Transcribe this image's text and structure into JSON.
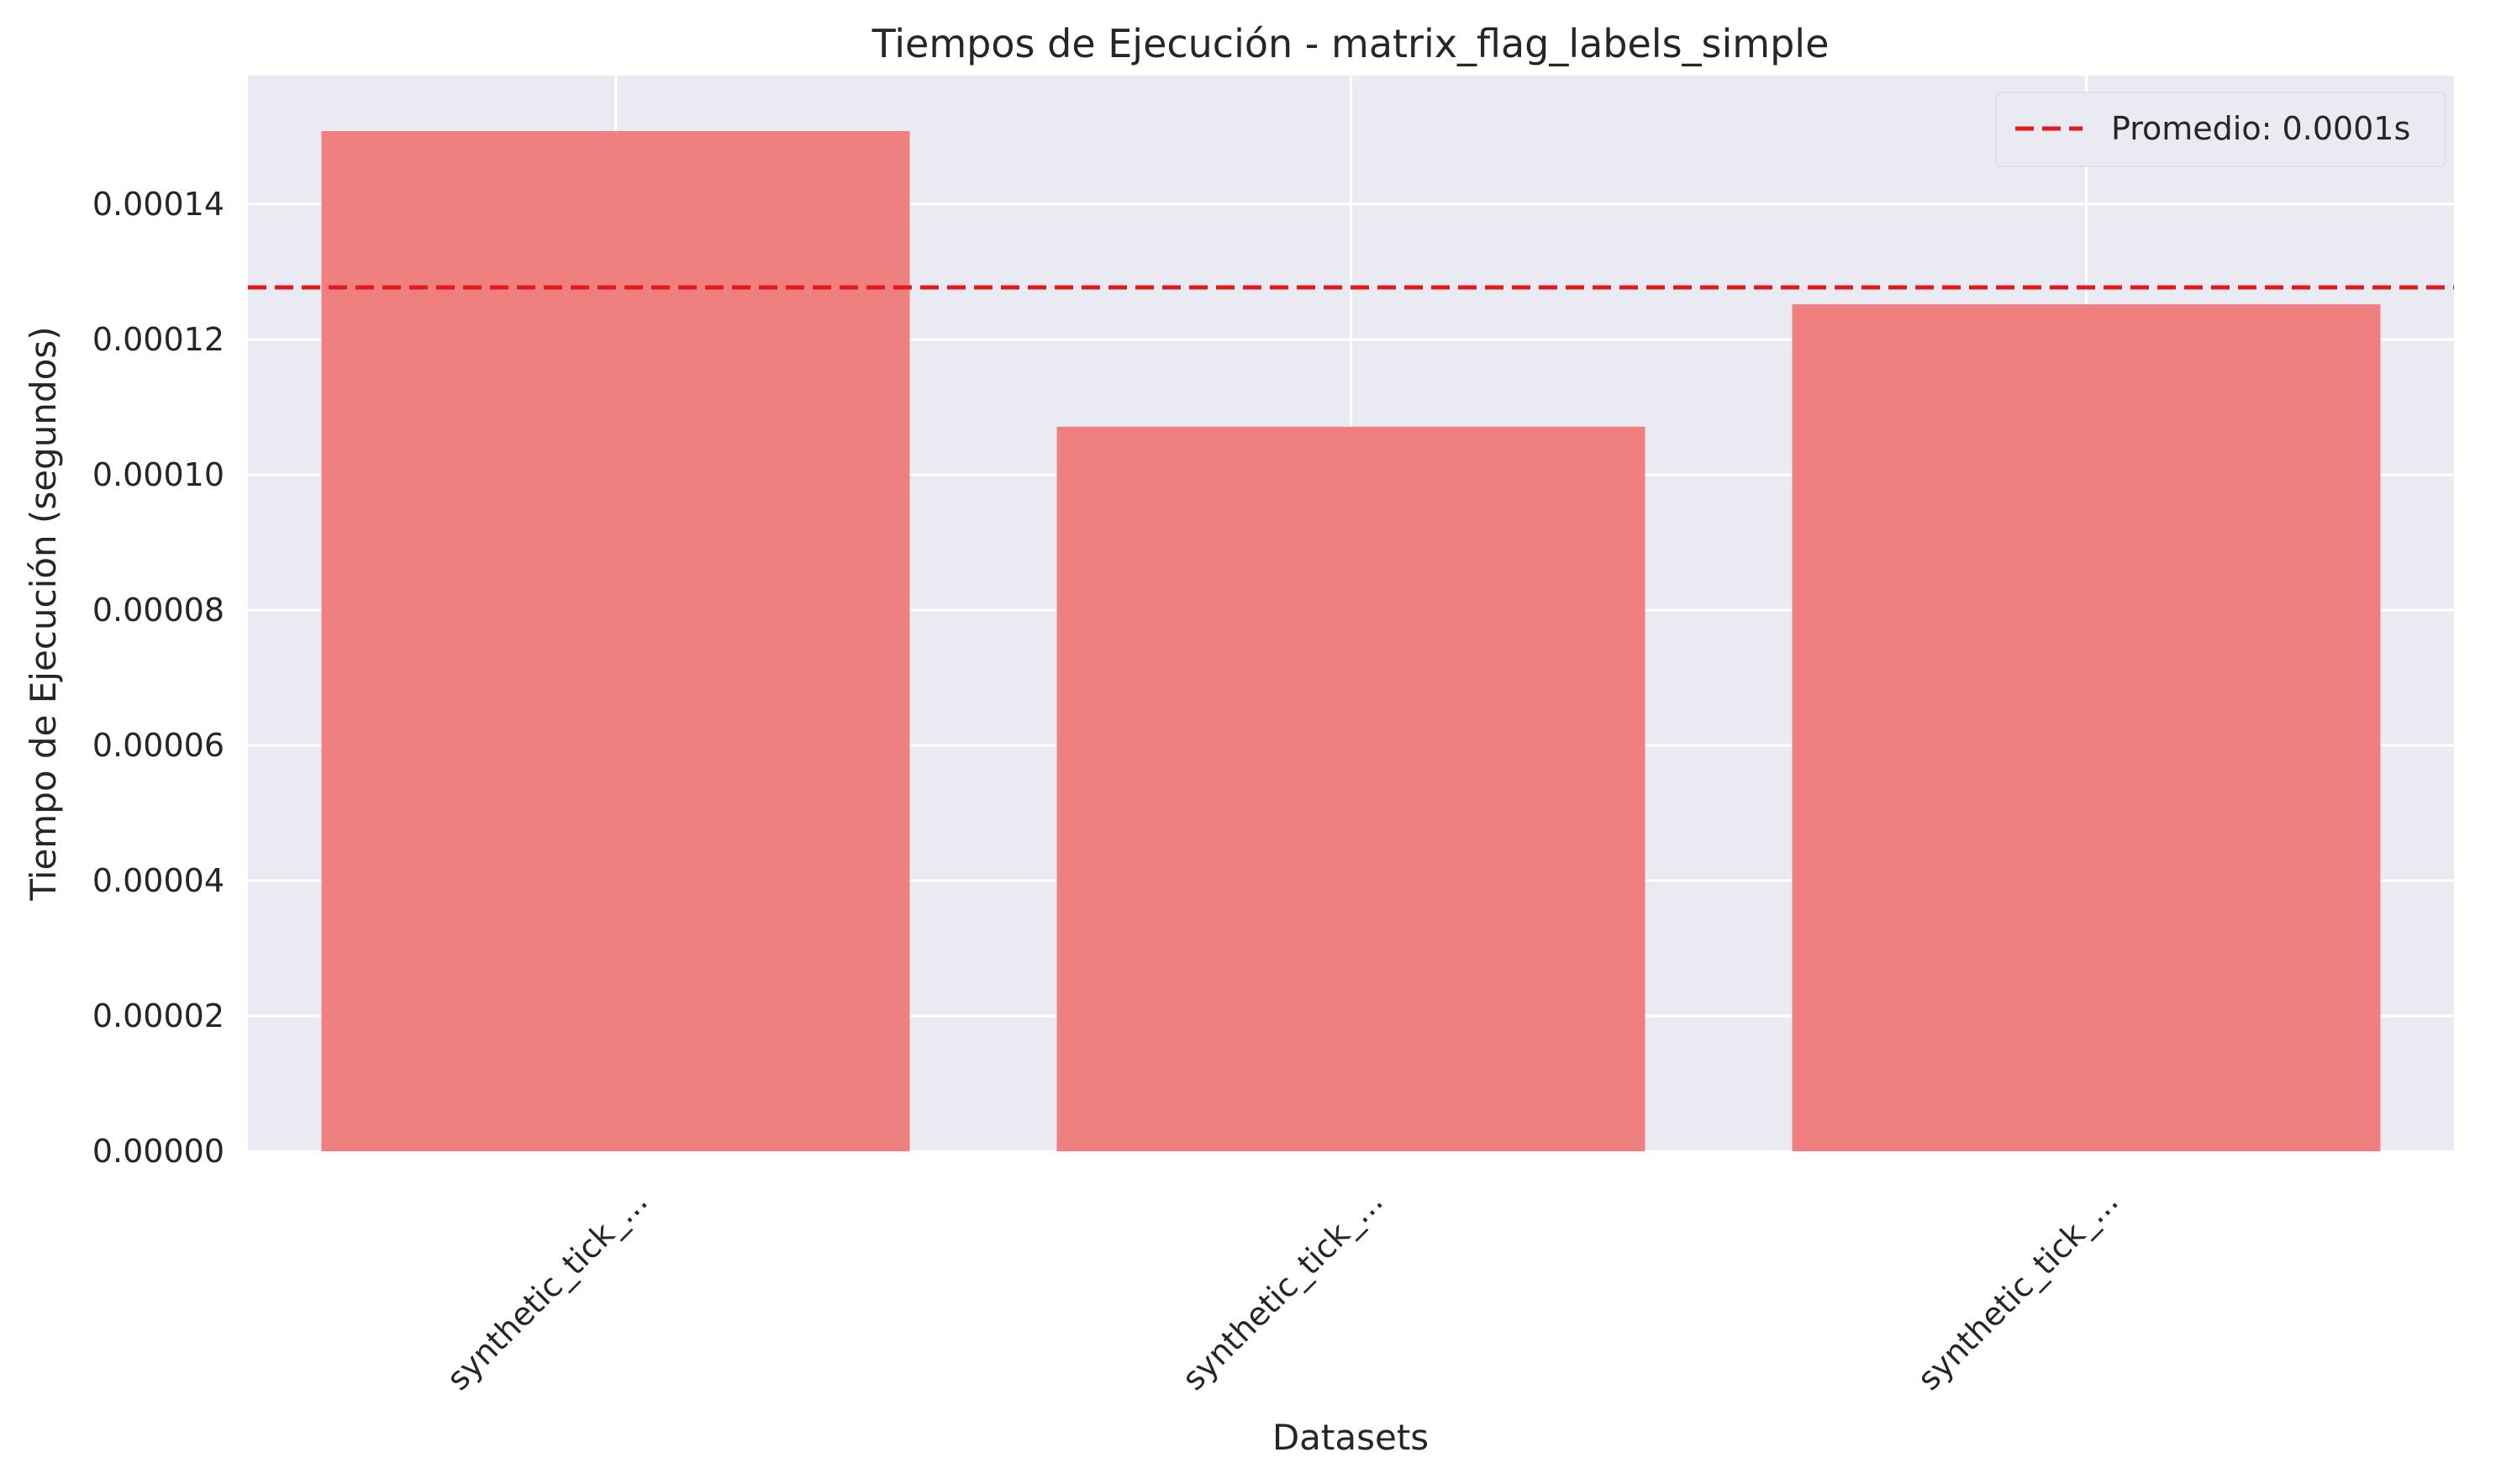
{
  "chart_data": {
    "type": "bar",
    "title": "Tiempos de Ejecución - matrix_flag_labels_simple",
    "xlabel": "Datasets",
    "ylabel": "Tiempo de Ejecución (segundos)",
    "categories": [
      "synthetic_tick_...",
      "synthetic_tick_...",
      "synthetic_tick_..."
    ],
    "values": [
      0.0001508,
      0.0001071,
      0.0001252
    ],
    "ylim": [
      0,
      0.000159
    ],
    "yticks": [
      0,
      2e-05,
      4e-05,
      6e-05,
      8e-05,
      0.0001,
      0.00012,
      0.00014
    ],
    "ytick_labels": [
      "0.00000",
      "0.00002",
      "0.00004",
      "0.00006",
      "0.00008",
      "0.00010",
      "0.00012",
      "0.00014"
    ],
    "mean_line": {
      "value": 0.0001277,
      "label": "Promedio: 0.0001s"
    },
    "grid": true,
    "legend_position": "top-right",
    "colors": {
      "bar": "#f08080",
      "mean_line": "#e31a1c",
      "plot_background": "#eaeaf2",
      "grid": "#ffffff"
    }
  }
}
